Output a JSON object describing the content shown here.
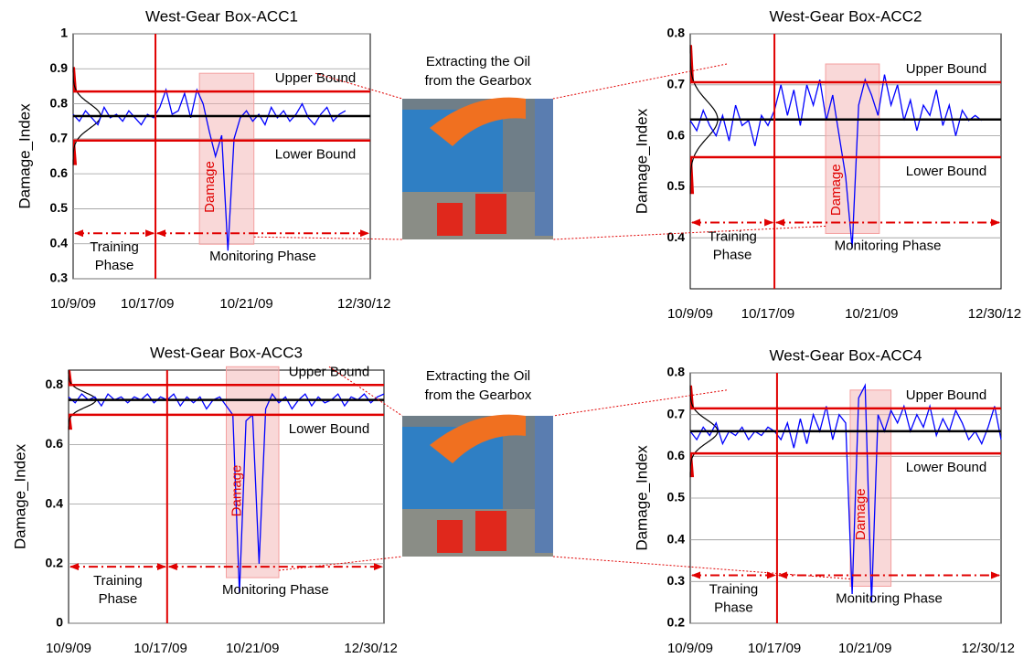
{
  "chart_data": [
    {
      "type": "line",
      "title": "West-Gear Box-ACC1",
      "y_label": "Damage_Index",
      "upper_label": "Upper Bound",
      "lower_label": "Lower Bound",
      "damage_label": "Damage",
      "training_label": [
        "Training",
        "Phase"
      ],
      "monitoring_label": "Monitoring Phase",
      "upper_bound": 0.835,
      "lower_bound": 0.695,
      "mean": 0.765,
      "split": 13.3,
      "damage_span": [
        20.4,
        29.2
      ],
      "arrow_y": 0.43,
      "bound_color": "#e00000",
      "mean_color": "#000000",
      "xlim": [
        0,
        48
      ],
      "xticks": [
        {
          "value": 0,
          "label": "10/9/09"
        },
        {
          "value": 12,
          "label": "10/17/09"
        },
        {
          "value": 28,
          "label": "10/21/09"
        },
        {
          "value": 47,
          "label": "12/30/12"
        }
      ],
      "ylim": [
        0.3,
        1
      ],
      "yticks": [
        0.3,
        0.4,
        0.5,
        0.6,
        0.7,
        0.8,
        0.9,
        1
      ],
      "series": [
        {
          "color": "#0000ff",
          "values": [
            0.77,
            0.75,
            0.78,
            0.76,
            0.74,
            0.79,
            0.76,
            0.77,
            0.75,
            0.78,
            0.76,
            0.74,
            0.77,
            0.76,
            0.79,
            0.84,
            0.77,
            0.78,
            0.83,
            0.76,
            0.84,
            0.8,
            0.72,
            0.65,
            0.71,
            0.38,
            0.7,
            0.76,
            0.78,
            0.75,
            0.77,
            0.74,
            0.79,
            0.76,
            0.78,
            0.75,
            0.77,
            0.8,
            0.76,
            0.74,
            0.77,
            0.79,
            0.75,
            0.77,
            0.78
          ]
        }
      ]
    },
    {
      "type": "line",
      "title": "West-Gear Box-ACC2",
      "y_label": "Damage_Index",
      "upper_label": "Upper Bound",
      "lower_label": "Lower Bound",
      "damage_label": "Damage",
      "training_label": [
        "Training",
        "Phase"
      ],
      "monitoring_label": "Monitoring Phase",
      "upper_bound": 0.705,
      "lower_bound": 0.558,
      "mean": 0.632,
      "split": 13,
      "damage_span": [
        20.9,
        29.2
      ],
      "arrow_y": 0.43,
      "bound_color": "#e00000",
      "mean_color": "#000000",
      "xlim": [
        0,
        48
      ],
      "xticks": [
        {
          "value": 0,
          "label": "10/9/09"
        },
        {
          "value": 12,
          "label": "10/17/09"
        },
        {
          "value": 28,
          "label": "10/21/09"
        },
        {
          "value": 47,
          "label": "12/30/12"
        }
      ],
      "ylim": [
        0.3,
        0.8
      ],
      "yticks": [
        0.4,
        0.5,
        0.6,
        0.7,
        0.8
      ],
      "series": [
        {
          "color": "#0000ff",
          "values": [
            0.63,
            0.61,
            0.65,
            0.62,
            0.6,
            0.64,
            0.59,
            0.66,
            0.62,
            0.63,
            0.58,
            0.64,
            0.62,
            0.65,
            0.7,
            0.64,
            0.69,
            0.62,
            0.7,
            0.66,
            0.71,
            0.63,
            0.68,
            0.6,
            0.52,
            0.38,
            0.66,
            0.71,
            0.68,
            0.64,
            0.72,
            0.66,
            0.7,
            0.63,
            0.67,
            0.61,
            0.66,
            0.64,
            0.69,
            0.62,
            0.66,
            0.6,
            0.65,
            0.63,
            0.64,
            0.63
          ]
        }
      ]
    },
    {
      "type": "line",
      "title": "West-Gear Box-ACC3",
      "y_label": "Damage_Index",
      "upper_label": "Upper Bound",
      "lower_label": "Lower Bound",
      "damage_label": "Damage",
      "training_label": [
        "Training",
        "Phase"
      ],
      "monitoring_label": "Monitoring Phase",
      "upper_bound": 0.8,
      "lower_bound": 0.7,
      "mean": 0.75,
      "split": 15,
      "damage_span": [
        24,
        32
      ],
      "arrow_y": 0.19,
      "bound_color": "#e00000",
      "mean_color": "#000000",
      "xlim": [
        0,
        48
      ],
      "xticks": [
        {
          "value": 0,
          "label": "10/9/09"
        },
        {
          "value": 14,
          "label": "10/17/09"
        },
        {
          "value": 28,
          "label": "10/21/09"
        },
        {
          "value": 46,
          "label": "12/30/12"
        }
      ],
      "ylim": [
        0,
        0.85
      ],
      "yticks": [
        0,
        0.2,
        0.4,
        0.6,
        0.8
      ],
      "series": [
        {
          "color": "#0000ff",
          "values": [
            0.76,
            0.74,
            0.77,
            0.75,
            0.76,
            0.73,
            0.77,
            0.75,
            0.76,
            0.74,
            0.76,
            0.75,
            0.77,
            0.74,
            0.76,
            0.75,
            0.77,
            0.73,
            0.76,
            0.74,
            0.76,
            0.72,
            0.75,
            0.76,
            0.73,
            0.7,
            0.1,
            0.68,
            0.7,
            0.2,
            0.72,
            0.77,
            0.74,
            0.76,
            0.72,
            0.75,
            0.77,
            0.73,
            0.76,
            0.74,
            0.75,
            0.77,
            0.73,
            0.76,
            0.75,
            0.77,
            0.74,
            0.76,
            0.77
          ]
        }
      ]
    },
    {
      "type": "line",
      "title": "West-Gear Box-ACC4",
      "y_label": "Damage_Index",
      "upper_label": "Upper Bound",
      "lower_label": "Lower Bound",
      "damage_label": "Damage",
      "training_label": [
        "Training",
        "Phase"
      ],
      "monitoring_label": "Monitoring Phase",
      "upper_bound": 0.715,
      "lower_bound": 0.607,
      "mean": 0.66,
      "split": 13.4,
      "damage_span": [
        24.7,
        31
      ],
      "arrow_y": 0.315,
      "bound_color": "#e00000",
      "mean_color": "#000000",
      "xlim": [
        0,
        48
      ],
      "xticks": [
        {
          "value": 0,
          "label": "10/9/09"
        },
        {
          "value": 13,
          "label": "10/17/09"
        },
        {
          "value": 27,
          "label": "10/21/09"
        },
        {
          "value": 46,
          "label": "12/30/12"
        }
      ],
      "ylim": [
        0.2,
        0.8
      ],
      "yticks": [
        0.2,
        0.3,
        0.4,
        0.5,
        0.6,
        0.7,
        0.8
      ],
      "series": [
        {
          "color": "#0000ff",
          "values": [
            0.66,
            0.64,
            0.67,
            0.65,
            0.68,
            0.63,
            0.66,
            0.65,
            0.67,
            0.64,
            0.66,
            0.65,
            0.67,
            0.66,
            0.64,
            0.68,
            0.62,
            0.69,
            0.63,
            0.7,
            0.66,
            0.72,
            0.64,
            0.7,
            0.68,
            0.27,
            0.74,
            0.77,
            0.25,
            0.7,
            0.66,
            0.71,
            0.68,
            0.72,
            0.66,
            0.7,
            0.67,
            0.72,
            0.65,
            0.69,
            0.66,
            0.71,
            0.68,
            0.64,
            0.66,
            0.63,
            0.67,
            0.72,
            0.64
          ]
        }
      ]
    }
  ],
  "photos": [
    {
      "caption": [
        "Extracting the Oil",
        "from the Gearbox"
      ]
    },
    {
      "caption": [
        "Extracting the Oil",
        "from the Gearbox"
      ]
    }
  ]
}
